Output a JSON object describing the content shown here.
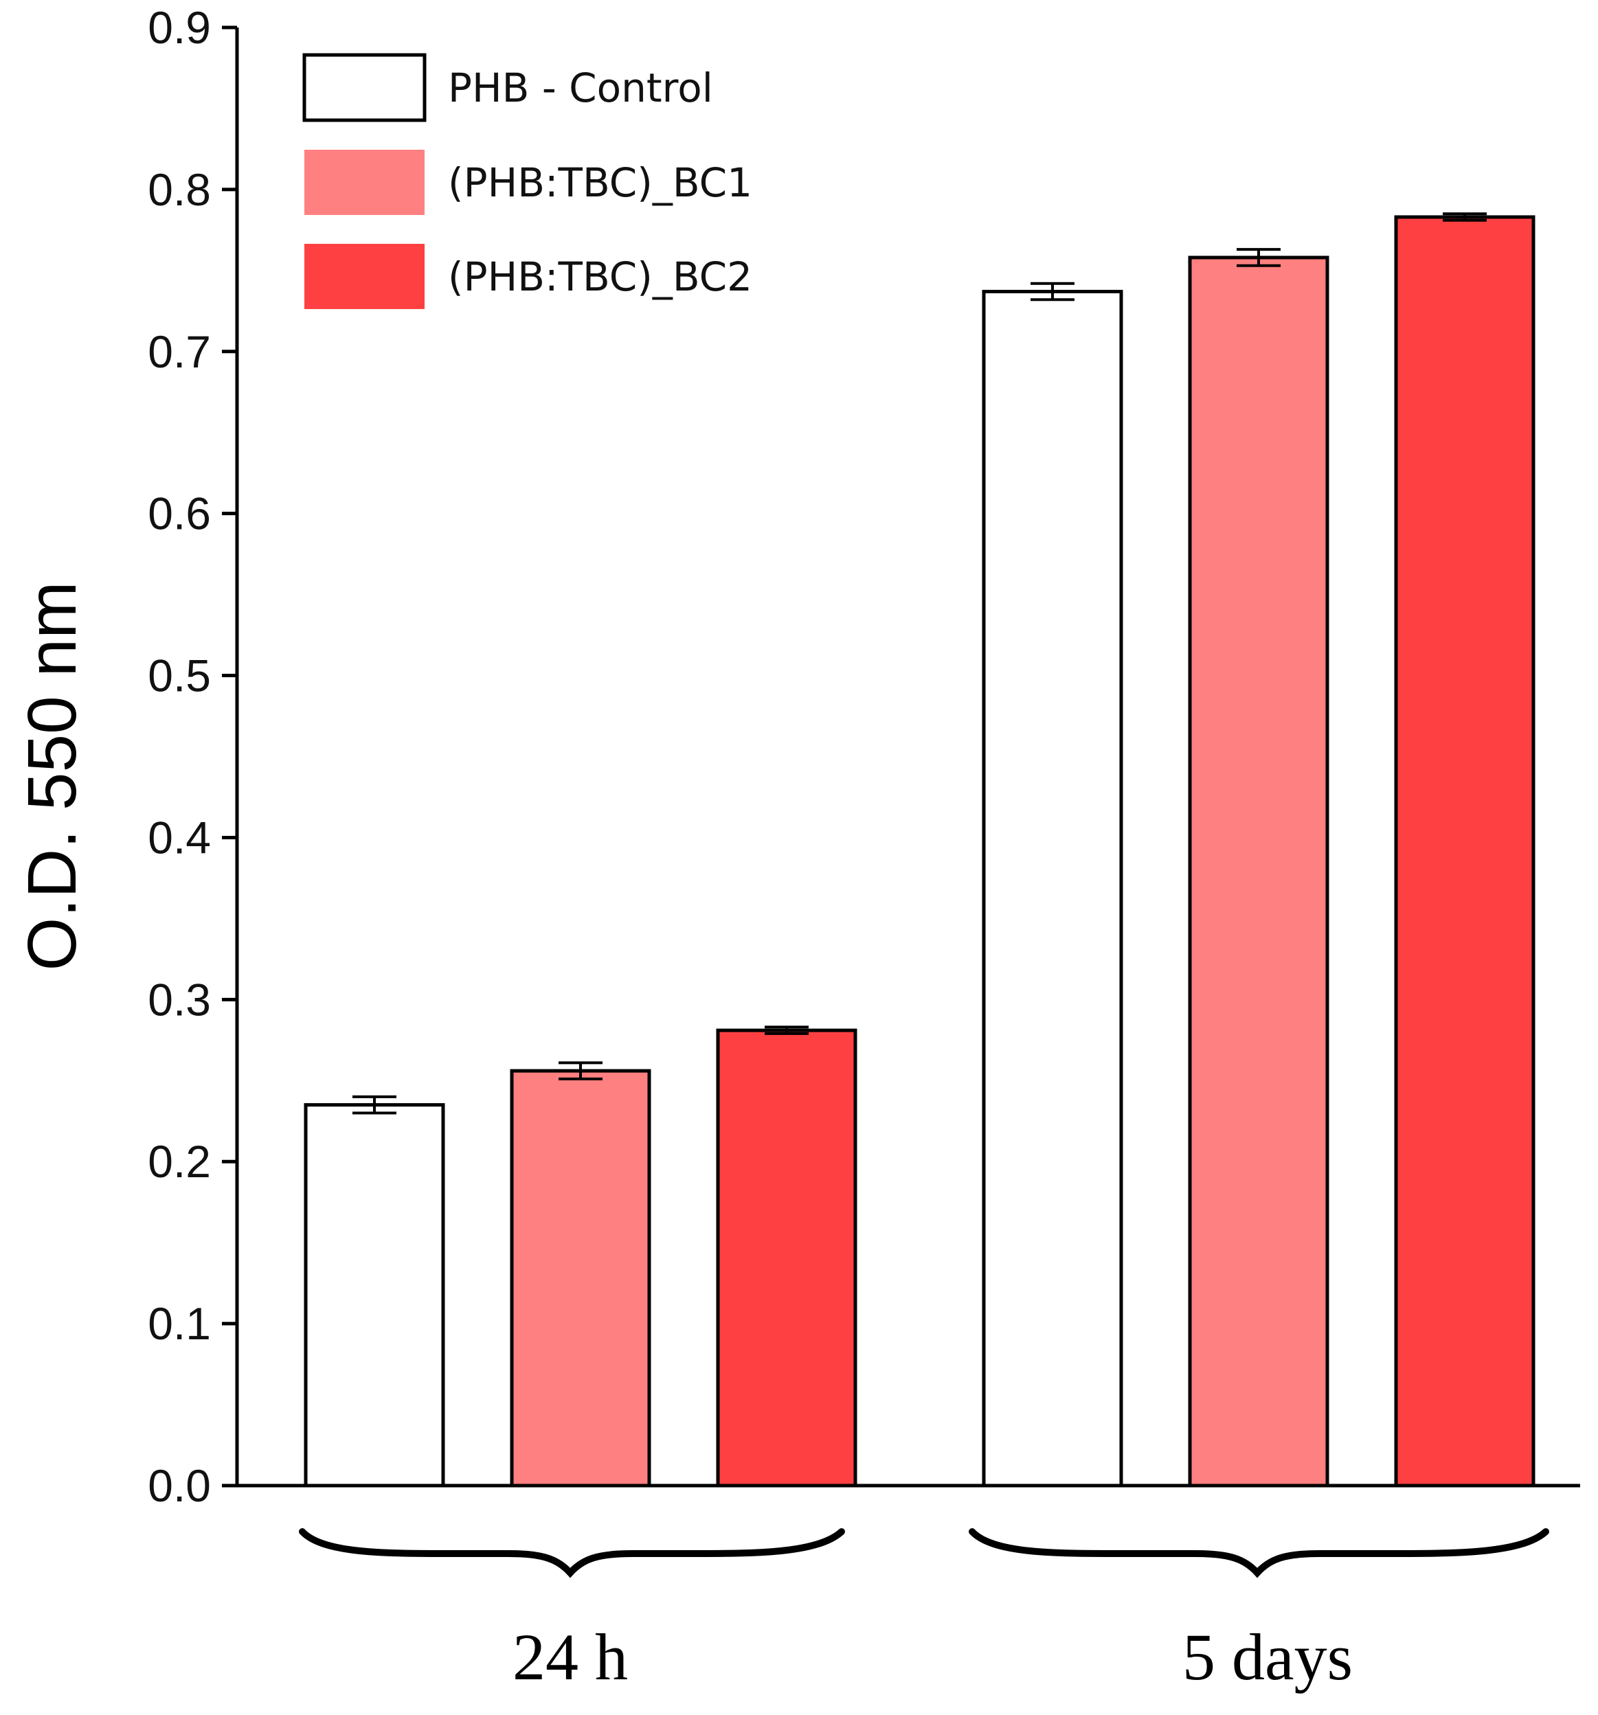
{
  "chart_data": {
    "type": "bar",
    "title": "",
    "xlabel": "",
    "ylabel": "O.D. 550 nm",
    "ylim": [
      0,
      0.9
    ],
    "yticks": [
      "0.0",
      "0.1",
      "0.2",
      "0.3",
      "0.4",
      "0.5",
      "0.6",
      "0.7",
      "0.8",
      "0.9"
    ],
    "grid": false,
    "legend_position": "top-left",
    "categories": [
      "24 h",
      "5 days"
    ],
    "series": [
      {
        "name": "PHB - Control",
        "color": "#ffffff",
        "values": [
          0.235,
          0.737
        ],
        "errors": [
          0.005,
          0.005
        ]
      },
      {
        "name": "(PHB:TBC)_BC1",
        "color": "#ff8080",
        "values": [
          0.256,
          0.758
        ],
        "errors": [
          0.005,
          0.005
        ]
      },
      {
        "name": "(PHB:TBC)_BC2",
        "color": "#ff4042",
        "values": [
          0.281,
          0.783
        ],
        "errors": [
          0.002,
          0.002
        ]
      }
    ]
  }
}
